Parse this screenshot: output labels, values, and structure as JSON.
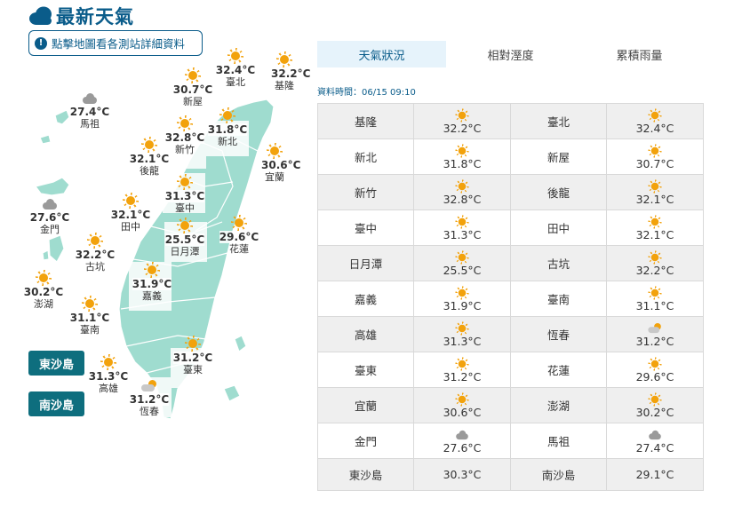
{
  "header": {
    "title": "最新天氣"
  },
  "hint": {
    "label": "點擊地圖看各測站詳細資料"
  },
  "tabs": [
    {
      "label": "天氣狀況",
      "active": true
    },
    {
      "label": "相對溼度",
      "active": false
    },
    {
      "label": "累積雨量",
      "active": false
    }
  ],
  "data_time": "資料時間：06/15 09:10",
  "islands": {
    "dongsha": "東沙島",
    "nansha": "南沙島"
  },
  "colors": {
    "brand": "#0a5c8a",
    "map_land": "#9fdccf",
    "island_button": "#0e6e7e",
    "sun": "#f2a20c"
  },
  "map_markers": [
    {
      "name": "臺北",
      "temp": "32.4°C",
      "icon": "sunny"
    },
    {
      "name": "基隆",
      "temp": "32.2°C",
      "icon": "sunny"
    },
    {
      "name": "新屋",
      "temp": "30.7°C",
      "icon": "sunny"
    },
    {
      "name": "馬祖",
      "temp": "27.4°C",
      "icon": "cloudy"
    },
    {
      "name": "新北",
      "temp": "31.8°C",
      "icon": "sunny"
    },
    {
      "name": "新竹",
      "temp": "32.8°C",
      "icon": "sunny"
    },
    {
      "name": "後龍",
      "temp": "32.1°C",
      "icon": "sunny"
    },
    {
      "name": "宜蘭",
      "temp": "30.6°C",
      "icon": "sunny"
    },
    {
      "name": "臺中",
      "temp": "31.3°C",
      "icon": "sunny"
    },
    {
      "name": "金門",
      "temp": "27.6°C",
      "icon": "cloudy"
    },
    {
      "name": "田中",
      "temp": "32.1°C",
      "icon": "sunny"
    },
    {
      "name": "花蓮",
      "temp": "29.6°C",
      "icon": "sunny"
    },
    {
      "name": "日月潭",
      "temp": "25.5°C",
      "icon": "sunny"
    },
    {
      "name": "古坑",
      "temp": "32.2°C",
      "icon": "sunny"
    },
    {
      "name": "澎湖",
      "temp": "30.2°C",
      "icon": "sunny"
    },
    {
      "name": "嘉義",
      "temp": "31.9°C",
      "icon": "sunny"
    },
    {
      "name": "臺南",
      "temp": "31.1°C",
      "icon": "sunny"
    },
    {
      "name": "臺東",
      "temp": "31.2°C",
      "icon": "sunny"
    },
    {
      "name": "高雄",
      "temp": "31.3°C",
      "icon": "sunny"
    },
    {
      "name": "恆春",
      "temp": "31.2°C",
      "icon": "partly-cloudy"
    }
  ],
  "table": [
    [
      {
        "station": "基隆",
        "temp": "32.2°C",
        "icon": "sunny"
      },
      {
        "station": "臺北",
        "temp": "32.4°C",
        "icon": "sunny"
      }
    ],
    [
      {
        "station": "新北",
        "temp": "31.8°C",
        "icon": "sunny"
      },
      {
        "station": "新屋",
        "temp": "30.7°C",
        "icon": "sunny"
      }
    ],
    [
      {
        "station": "新竹",
        "temp": "32.8°C",
        "icon": "sunny"
      },
      {
        "station": "後龍",
        "temp": "32.1°C",
        "icon": "sunny"
      }
    ],
    [
      {
        "station": "臺中",
        "temp": "31.3°C",
        "icon": "sunny"
      },
      {
        "station": "田中",
        "temp": "32.1°C",
        "icon": "sunny"
      }
    ],
    [
      {
        "station": "日月潭",
        "temp": "25.5°C",
        "icon": "sunny"
      },
      {
        "station": "古坑",
        "temp": "32.2°C",
        "icon": "sunny"
      }
    ],
    [
      {
        "station": "嘉義",
        "temp": "31.9°C",
        "icon": "sunny"
      },
      {
        "station": "臺南",
        "temp": "31.1°C",
        "icon": "sunny"
      }
    ],
    [
      {
        "station": "高雄",
        "temp": "31.3°C",
        "icon": "sunny"
      },
      {
        "station": "恆春",
        "temp": "31.2°C",
        "icon": "partly-cloudy"
      }
    ],
    [
      {
        "station": "臺東",
        "temp": "31.2°C",
        "icon": "sunny"
      },
      {
        "station": "花蓮",
        "temp": "29.6°C",
        "icon": "sunny"
      }
    ],
    [
      {
        "station": "宜蘭",
        "temp": "30.6°C",
        "icon": "sunny"
      },
      {
        "station": "澎湖",
        "temp": "30.2°C",
        "icon": "sunny"
      }
    ],
    [
      {
        "station": "金門",
        "temp": "27.6°C",
        "icon": "cloudy"
      },
      {
        "station": "馬祖",
        "temp": "27.4°C",
        "icon": "cloudy"
      }
    ],
    [
      {
        "station": "東沙島",
        "temp": "30.3°C",
        "icon": ""
      },
      {
        "station": "南沙島",
        "temp": "29.1°C",
        "icon": ""
      }
    ]
  ]
}
